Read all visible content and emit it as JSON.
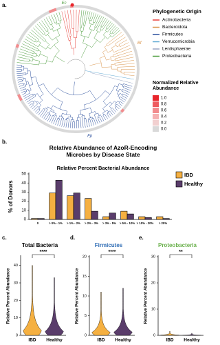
{
  "panel_labels": [
    "a.",
    "b.",
    "c.",
    "d.",
    "e."
  ],
  "tree": {
    "taxa_labels": [
      {
        "text": "Ec",
        "color": "#4b9c3c"
      },
      {
        "text": "Bf",
        "color": "#d9944a"
      },
      {
        "text": "Fp",
        "color": "#2b4f9c"
      }
    ],
    "legend_title": "Phylogenetic Origin",
    "clades": [
      {
        "name": "Actinobacteria",
        "color": "#e8403a"
      },
      {
        "name": "Bacteroidota",
        "color": "#d9944a"
      },
      {
        "name": "Firmicutes",
        "color": "#2b4f9c"
      },
      {
        "name": "Verrucomicrobia",
        "color": "#5fa8d3"
      },
      {
        "name": "Lentisphaerae",
        "color": "#9aa5c4"
      },
      {
        "name": "Proteobacteria",
        "color": "#4b9c3c"
      }
    ],
    "colorbar_title": "Normalized Relative Abundance",
    "colorbar_ticks": [
      {
        "value": 1,
        "label": "1.0"
      },
      0.8,
      0.6,
      0.4,
      0.2,
      {
        "value": 0,
        "label": "0.0"
      }
    ],
    "colorbar_colors": [
      "#e8252b",
      "#ee5a5e",
      "#f28c8e",
      "#f5b1b2",
      "#f2d0d0",
      "#d9d9d9"
    ]
  },
  "chart_data": [
    {
      "type": "bar",
      "title": "Relative Abundance of AzoR-Encoding Microbes by Disease State",
      "xlabel": "Relative Percent Bacterial Abundance",
      "ylabel": "% of Donors",
      "categories": [
        "0",
        "> 0% - 1%",
        "> 1% - 2%",
        "> 2% - 3%",
        "> 3% - 5%",
        "> 5% - 10%",
        "> 10% - 20%",
        "> 20%"
      ],
      "series": [
        {
          "name": "IBD",
          "color": "#f5b041",
          "values": [
            1,
            29,
            26,
            23,
            3,
            9,
            3,
            3
          ]
        },
        {
          "name": "Healthy",
          "color": "#5a3d6b",
          "values": [
            1,
            43,
            29,
            9,
            7,
            6,
            2,
            1
          ]
        }
      ],
      "ylim": [
        0,
        50
      ],
      "yticks": [
        0,
        10,
        20,
        30,
        40,
        50
      ],
      "legend": "upper right"
    },
    {
      "type": "violin",
      "title": "Total Bacteria",
      "title_color": "#000000",
      "ylabel": "Relative Percent Abundance",
      "categories": [
        "IBD",
        "Healthy"
      ],
      "colors": [
        "#f5b041",
        "#5a3d6b"
      ],
      "max": [
        40,
        33
      ],
      "ylim": [
        0,
        45
      ],
      "yticks": [
        0,
        10,
        20,
        30,
        40
      ],
      "significance": "****"
    },
    {
      "type": "violin",
      "title": "Firmicutes",
      "title_color": "#2f6db5",
      "ylabel": "Relative Percent Abundance",
      "categories": [
        "IBD",
        "Healthy"
      ],
      "colors": [
        "#f5b041",
        "#5a3d6b"
      ],
      "max": [
        11,
        12
      ],
      "ylim": [
        0,
        20
      ],
      "yticks": [
        0,
        5,
        10,
        15,
        20
      ],
      "significance": "****"
    },
    {
      "type": "violin",
      "title": "Proteobacteria",
      "title_color": "#6ab04c",
      "ylabel": "Relative Percent Abundance",
      "categories": [
        "IBD",
        "Healthy"
      ],
      "colors": [
        "#f5b041",
        "#5a3d6b"
      ],
      "max": [
        1.5,
        0.8
      ],
      "ylim": [
        0,
        30
      ],
      "yticks": [
        0,
        10,
        20,
        30
      ],
      "significance": "**"
    }
  ]
}
